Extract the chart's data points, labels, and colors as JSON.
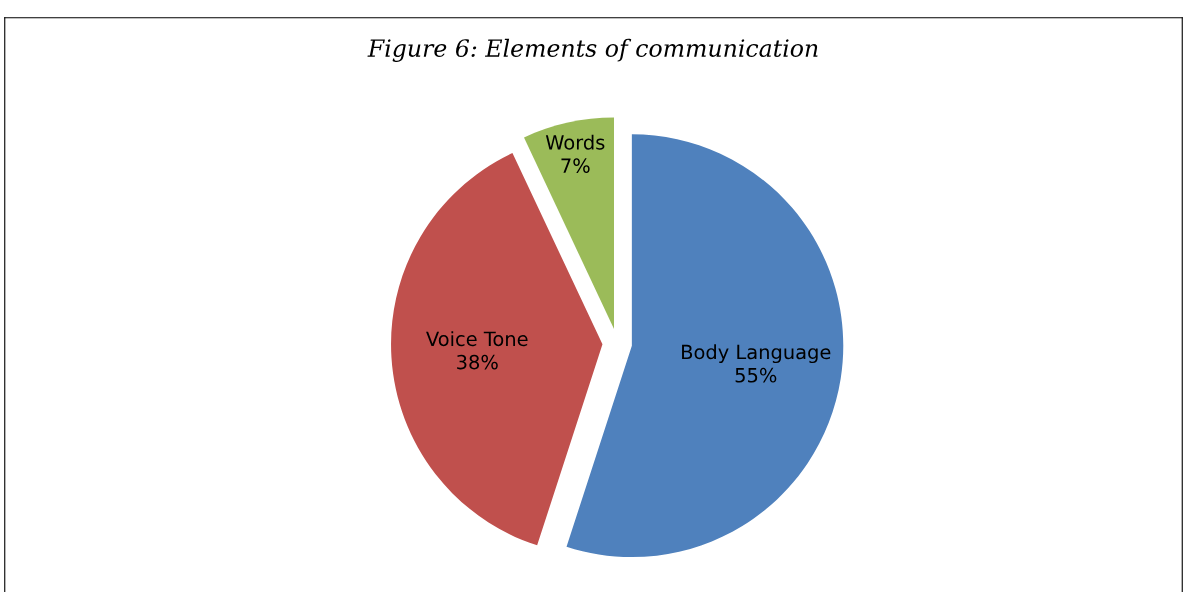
{
  "chart_data": {
    "type": "pie",
    "title": "Figure 6: Elements of communication",
    "categories": [
      "Body Language",
      "Voice Tone",
      "Words"
    ],
    "values": [
      55,
      38,
      7
    ],
    "value_labels": [
      "55%",
      "38%",
      "7%"
    ],
    "colors": [
      "#4f81bd",
      "#c0504d",
      "#9bbb59"
    ],
    "legend": false
  }
}
